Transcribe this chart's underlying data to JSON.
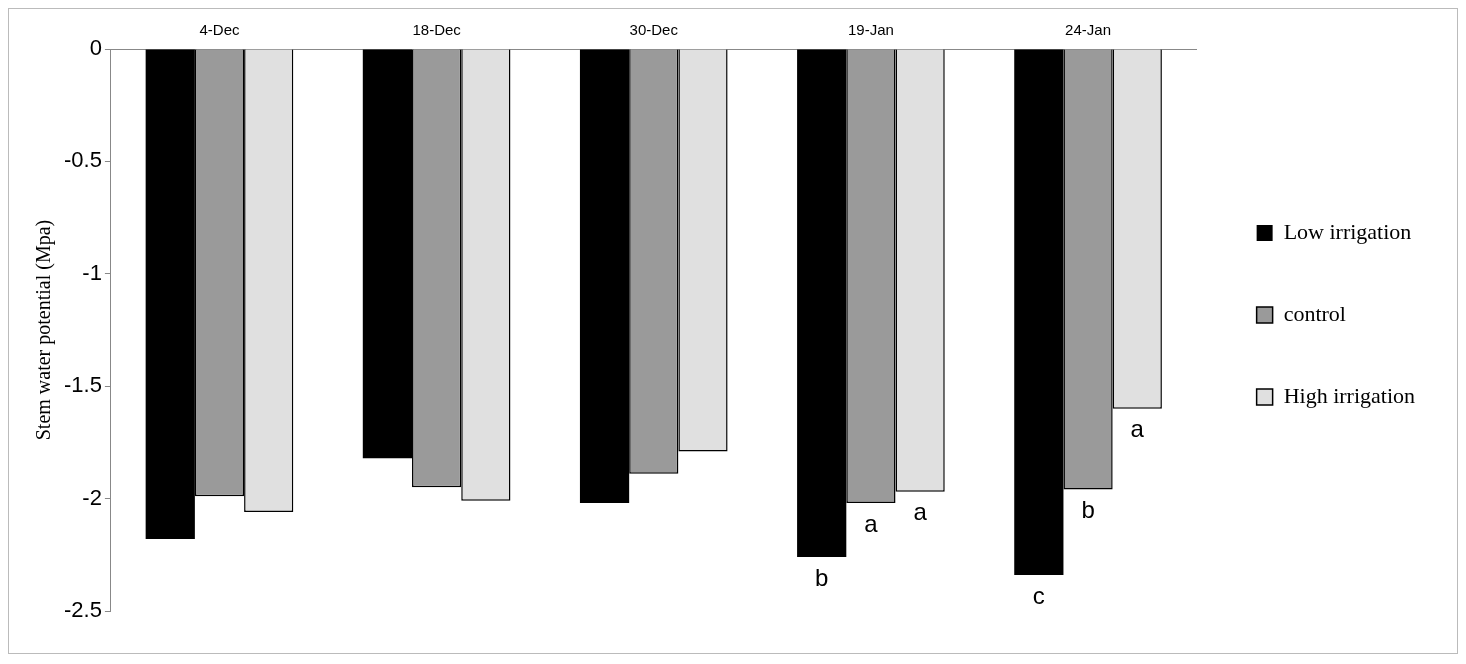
{
  "chart_data": {
    "type": "bar",
    "ylabel": "Stem water potential (Mpa)",
    "categories": [
      "4-Dec",
      "18-Dec",
      "30-Dec",
      "19-Jan",
      "24-Jan"
    ],
    "series": [
      {
        "name": "Low irrigation",
        "color": "#000000",
        "values": [
          -2.18,
          -1.82,
          -2.02,
          -2.26,
          -2.34
        ],
        "value_labels": [
          null,
          null,
          null,
          "b",
          "c"
        ]
      },
      {
        "name": "control",
        "color": "#9a9a9a",
        "values": [
          -1.99,
          -1.95,
          -1.89,
          -2.02,
          -1.96
        ],
        "value_labels": [
          null,
          null,
          null,
          "a",
          "b"
        ]
      },
      {
        "name": "High irrigation",
        "color": "#e0e0e0",
        "values": [
          -2.06,
          -2.01,
          -1.79,
          -1.97,
          -1.6
        ],
        "value_labels": [
          null,
          null,
          null,
          "a",
          "a"
        ]
      }
    ],
    "ylim": [
      -2.5,
      0
    ],
    "yticks": [
      0,
      -0.5,
      -1,
      -1.5,
      -2,
      -2.5
    ],
    "grid": false,
    "legend": "right"
  }
}
